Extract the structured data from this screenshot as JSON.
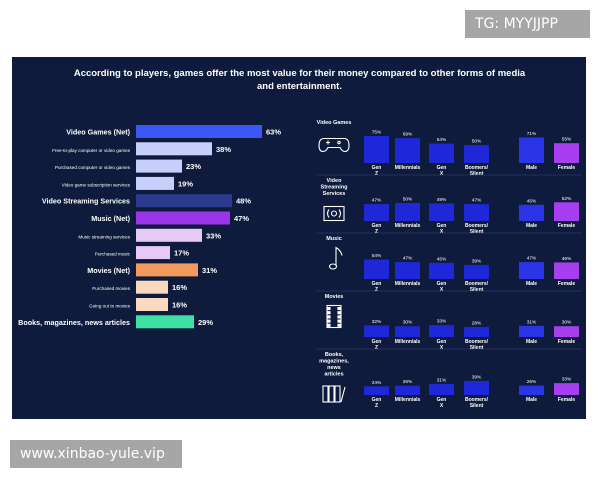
{
  "watermark_top": "TG: MYYJJPP",
  "watermark_bottom": "www.xinbao-yule.vip",
  "colors": {
    "panel_bg": "#0e1b3c",
    "games": "#3b57f5",
    "games_light": "#c9cffb",
    "streaming": "#2b3a8c",
    "music": "#9b35e8",
    "music_light": "#e7c9f7",
    "movies": "#f29a5e",
    "movies_light": "#fbd9bf",
    "books": "#3fe0a6",
    "gen_bar": "#1f28d8",
    "male_bar": "#2b34e6",
    "female_bar": "#a73ef0",
    "text": "#ffffff"
  },
  "chart_data": [
    {
      "type": "bar",
      "orientation": "horizontal",
      "title": "According to players, games offer the most value for their money compared to other forms of media and entertainment.",
      "categories": [
        "Video Games (Net)",
        "Free-to-play computer or video games",
        "Purchased computer or video games",
        "Video game subscription services",
        "Video Streaming Services",
        "Music (Net)",
        "Music streaming services",
        "Purchased music",
        "Movies (Net)",
        "Purchased movies",
        "Going out to movies",
        "Books, magazines, news articles"
      ],
      "values": [
        63,
        38,
        23,
        19,
        48,
        47,
        33,
        17,
        31,
        16,
        16,
        29
      ],
      "value_labels": [
        "63%",
        "38%",
        "23%",
        "19%",
        "48%",
        "47%",
        "33%",
        "17%",
        "31%",
        "16%",
        "16%",
        "29%"
      ],
      "bold": [
        true,
        false,
        false,
        false,
        true,
        true,
        false,
        false,
        true,
        false,
        false,
        true
      ],
      "color_keys": [
        "games",
        "games_light",
        "games_light",
        "games_light",
        "streaming",
        "music",
        "music_light",
        "music_light",
        "movies",
        "movies_light",
        "movies_light",
        "books"
      ],
      "xlim": [
        0,
        100
      ]
    },
    {
      "type": "bar",
      "layout": "small-multiples",
      "generation_labels": [
        "Gen Z",
        "Millennials",
        "Gen X",
        "Boomers/ Silent"
      ],
      "gender_labels": [
        "Male",
        "Female"
      ],
      "rows": [
        {
          "label": "Video Games",
          "icon": "gamepad-icon",
          "generation": [
            75,
            69,
            54,
            50
          ],
          "generation_labels": [
            "75%",
            "69%",
            "54%",
            "50%"
          ],
          "gender": [
            71,
            55
          ],
          "gender_labels_values": [
            "71%",
            "55%"
          ]
        },
        {
          "label": "Video Streaming Services",
          "icon": "tv-icon",
          "generation": [
            47,
            50,
            49,
            47
          ],
          "generation_labels": [
            "47%",
            "50%",
            "49%",
            "47%"
          ],
          "gender": [
            45,
            52
          ],
          "gender_labels_values": [
            "45%",
            "52%"
          ]
        },
        {
          "label": "Music",
          "icon": "music-note-icon",
          "generation": [
            54,
            47,
            45,
            39
          ],
          "generation_labels": [
            "54%",
            "47%",
            "45%",
            "39%"
          ],
          "gender": [
            47,
            46
          ],
          "gender_labels_values": [
            "47%",
            "46%"
          ]
        },
        {
          "label": "Movies",
          "icon": "film-icon",
          "generation": [
            32,
            30,
            33,
            28
          ],
          "generation_labels": [
            "32%",
            "30%",
            "33%",
            "28%"
          ],
          "gender": [
            31,
            30
          ],
          "gender_labels_values": [
            "31%",
            "30%"
          ]
        },
        {
          "label": "Books, magazines, news articles",
          "icon": "books-icon",
          "generation": [
            24,
            26,
            31,
            39
          ],
          "generation_labels": [
            "24%",
            "26%",
            "31%",
            "39%"
          ],
          "gender": [
            26,
            33
          ],
          "gender_labels_values": [
            "26%",
            "33%"
          ]
        }
      ]
    }
  ]
}
